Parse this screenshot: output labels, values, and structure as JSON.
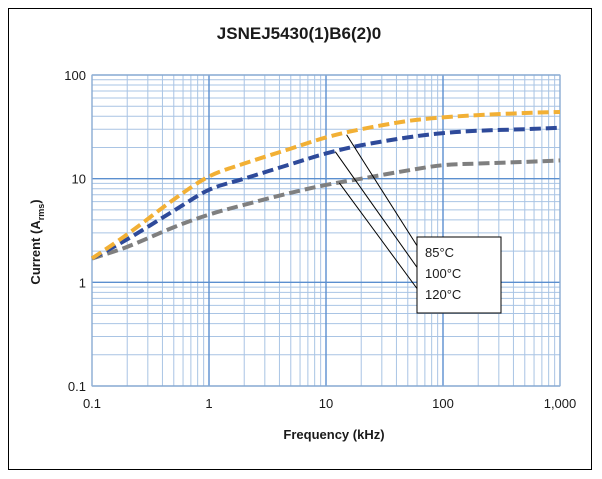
{
  "chart_data": {
    "type": "line",
    "title": "JSNEJ5430(1)B6(2)0",
    "xlabel": "Frequency (kHz)",
    "ylabel": {
      "main": "Current (A",
      "sub": "rms",
      "end": ")"
    },
    "x_scale": "log",
    "y_scale": "log",
    "xlim": [
      0.1,
      1000
    ],
    "ylim": [
      0.1,
      100
    ],
    "x_ticks": [
      {
        "value": 0.1,
        "label": "0.1"
      },
      {
        "value": 1,
        "label": "1"
      },
      {
        "value": 10,
        "label": "10"
      },
      {
        "value": 100,
        "label": "100"
      },
      {
        "value": 1000,
        "label": "1,000"
      }
    ],
    "y_ticks": [
      {
        "value": 0.1,
        "label": "0.1"
      },
      {
        "value": 1,
        "label": "1"
      },
      {
        "value": 10,
        "label": "10"
      },
      {
        "value": 100,
        "label": "100"
      }
    ],
    "grid": true,
    "legend_placement": "center-right",
    "series": [
      {
        "name": "85°C",
        "color": "#f2b035",
        "x": [
          0.1,
          0.2,
          0.5,
          1,
          2,
          5,
          10,
          20,
          50,
          100,
          200,
          500,
          1000
        ],
        "y": [
          1.7,
          2.9,
          6.3,
          10.5,
          14,
          19.5,
          25,
          30,
          36,
          39,
          41,
          43,
          44
        ]
      },
      {
        "name": "100°C",
        "color": "#2e4a9a",
        "x": [
          0.1,
          0.2,
          0.5,
          1,
          2,
          5,
          10,
          20,
          50,
          100,
          200,
          500,
          1000
        ],
        "y": [
          1.7,
          2.6,
          4.9,
          7.8,
          10,
          13.8,
          17.5,
          21,
          25,
          27.5,
          29,
          30,
          31
        ]
      },
      {
        "name": "120°C",
        "color": "#7f7f7f",
        "x": [
          0.1,
          0.2,
          0.5,
          1,
          2,
          5,
          10,
          20,
          50,
          100,
          200,
          500,
          1000
        ],
        "y": [
          1.7,
          2.2,
          3.4,
          4.5,
          5.6,
          7.3,
          8.7,
          10,
          12,
          13.5,
          14,
          14.5,
          15
        ]
      }
    ]
  }
}
